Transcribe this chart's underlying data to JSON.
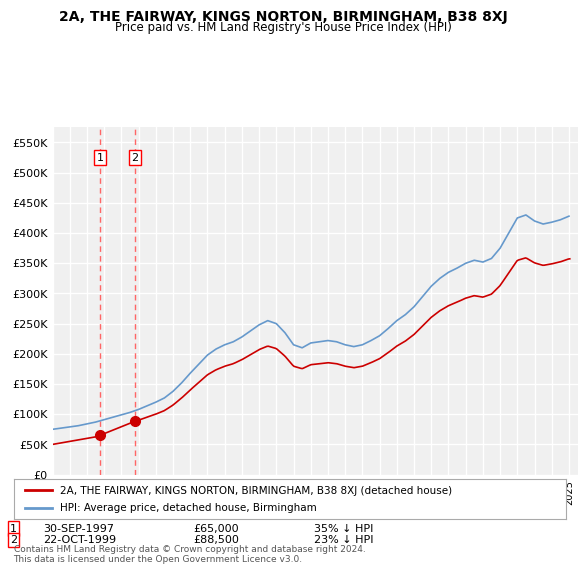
{
  "title": "2A, THE FAIRWAY, KINGS NORTON, BIRMINGHAM, B38 8XJ",
  "subtitle": "Price paid vs. HM Land Registry's House Price Index (HPI)",
  "ylabel": "",
  "ylim": [
    0,
    575000
  ],
  "yticks": [
    0,
    50000,
    100000,
    150000,
    200000,
    250000,
    300000,
    350000,
    400000,
    450000,
    500000,
    550000
  ],
  "ytick_labels": [
    "£0",
    "£50K",
    "£100K",
    "£150K",
    "£200K",
    "£250K",
    "£300K",
    "£350K",
    "£400K",
    "£450K",
    "£500K",
    "£550K"
  ],
  "sale1_date": "30-SEP-1997",
  "sale1_price": 65000,
  "sale1_pct": "35% ↓ HPI",
  "sale2_date": "22-OCT-1999",
  "sale2_price": 88500,
  "sale2_pct": "23% ↓ HPI",
  "legend_line1": "2A, THE FAIRWAY, KINGS NORTON, BIRMINGHAM, B38 8XJ (detached house)",
  "legend_line2": "HPI: Average price, detached house, Birmingham",
  "footer": "Contains HM Land Registry data © Crown copyright and database right 2024.\nThis data is licensed under the Open Government Licence v3.0.",
  "line_color_red": "#cc0000",
  "line_color_blue": "#6699cc",
  "marker_color": "#cc0000",
  "vline_color": "#ff6666",
  "bg_color": "#ffffff",
  "plot_bg_color": "#f0f0f0",
  "grid_color": "#ffffff"
}
